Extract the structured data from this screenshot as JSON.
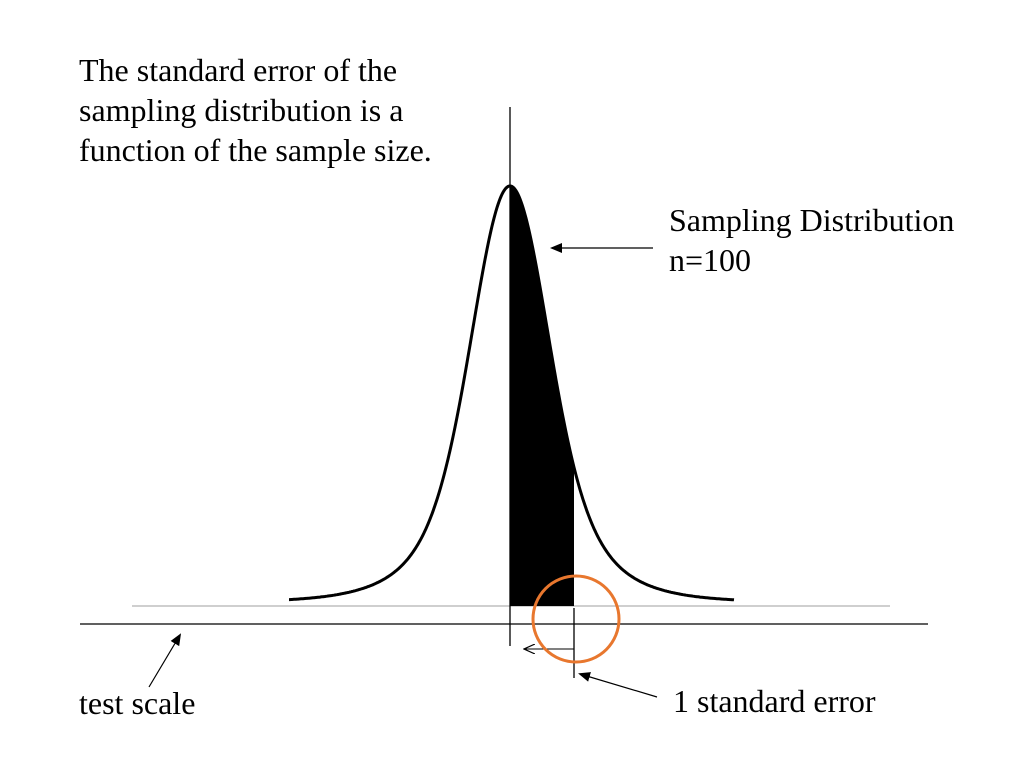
{
  "title": {
    "lines": [
      "The standard error of the",
      "sampling distribution is a",
      "function of the sample size."
    ]
  },
  "distribution_label": {
    "line1": "Sampling Distribution",
    "line2": "n=100"
  },
  "test_scale_label": "test scale",
  "standard_error_label": "1 standard error",
  "colors": {
    "curve": "#000000",
    "fill": "#000000",
    "baseline": "#bfbfbf",
    "axis": "#000000",
    "highlight_circle": "#e8772e"
  }
}
